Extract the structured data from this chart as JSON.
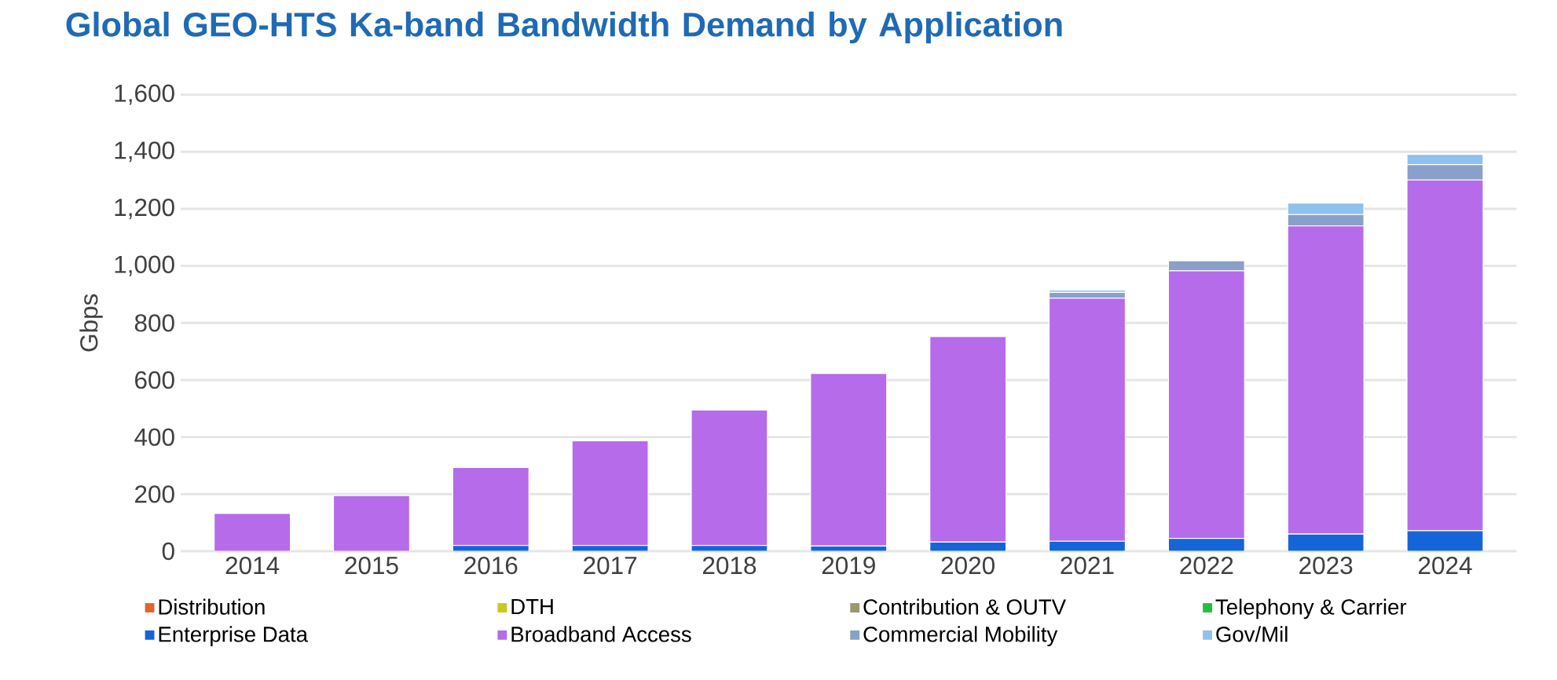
{
  "chart_data": {
    "type": "bar",
    "stacked": true,
    "title": "Global GEO-HTS Ka-band Bandwidth Demand by Application",
    "ylabel": "Gbps",
    "categories": [
      "2014",
      "2015",
      "2016",
      "2017",
      "2018",
      "2019",
      "2020",
      "2021",
      "2022",
      "2023",
      "2024"
    ],
    "ylim": [
      0,
      1600
    ],
    "yticks": [
      0,
      200,
      400,
      600,
      800,
      {
        "value": 1000,
        "label": "1,000"
      },
      {
        "value": 1200,
        "label": "1,200"
      },
      {
        "value": 1400,
        "label": "1,400"
      },
      {
        "value": 1600,
        "label": "1,600"
      }
    ],
    "grid": "y",
    "legend": "bottom",
    "series": [
      {
        "name": "Distribution",
        "color": "#e0652a",
        "values": [
          0,
          0,
          0,
          0,
          0,
          0,
          0,
          0,
          0,
          0,
          0
        ]
      },
      {
        "name": "DTH",
        "color": "#c8c820",
        "values": [
          0,
          0,
          0,
          0,
          0,
          0,
          0,
          0,
          0,
          0,
          0
        ]
      },
      {
        "name": "Contribution & OUTV",
        "color": "#9a9670",
        "values": [
          0,
          0,
          0,
          0,
          0,
          0,
          0,
          0,
          0,
          0,
          0
        ]
      },
      {
        "name": "Telephony & Carrier",
        "color": "#22c040",
        "values": [
          0,
          0,
          0,
          0,
          0,
          0,
          0,
          0,
          0,
          0,
          0
        ]
      },
      {
        "name": "Enterprise Data",
        "color": "#1565d8",
        "values": [
          null,
          null,
          20,
          20,
          20,
          18,
          32,
          35,
          45,
          60,
          72
        ]
      },
      {
        "name": "Broadband Access",
        "color": "#b56bea",
        "values": [
          132,
          195,
          273,
          367,
          475,
          605,
          720,
          852,
          938,
          1080,
          1229
        ]
      },
      {
        "name": "Commercial Mobility",
        "color": "#8aa0c8",
        "values": [
          0,
          0,
          0,
          0,
          0,
          0,
          0,
          20,
          35,
          40,
          54
        ]
      },
      {
        "name": "Gov/Mil",
        "color": "#8fc0ee",
        "values": [
          0,
          0,
          0,
          0,
          0,
          0,
          0,
          8,
          null,
          40,
          36
        ]
      }
    ]
  }
}
